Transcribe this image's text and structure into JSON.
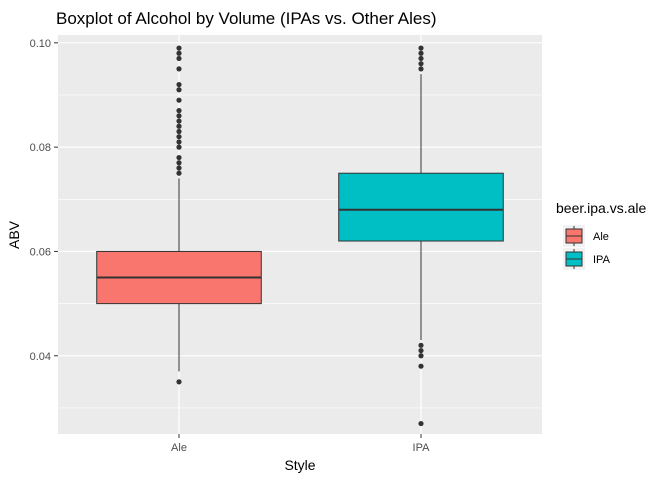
{
  "chart_data": {
    "type": "boxplot",
    "title": "Boxplot of Alcohol by Volume (IPAs vs. Other Ales)",
    "xlabel": "Style",
    "ylabel": "ABV",
    "categories": [
      "Ale",
      "IPA"
    ],
    "ylim": [
      0.025,
      0.1015
    ],
    "yticks": [
      0.04,
      0.06,
      0.08,
      0.1
    ],
    "ytick_labels": [
      "0.04",
      "0.06",
      "0.08",
      "0.10"
    ],
    "grid": true,
    "legend": {
      "title": "beer.ipa.vs.ale",
      "placement": "right",
      "entries": [
        {
          "label": "Ale",
          "color": "#F8766D"
        },
        {
          "label": "IPA",
          "color": "#00BFC4"
        }
      ]
    },
    "series": [
      {
        "category": "Ale",
        "color": "#F8766D",
        "q1": 0.05,
        "median": 0.055,
        "q3": 0.06,
        "whisker_low": 0.037,
        "whisker_high": 0.074,
        "outliers": [
          0.035,
          0.075,
          0.076,
          0.077,
          0.078,
          0.08,
          0.081,
          0.082,
          0.083,
          0.084,
          0.085,
          0.086,
          0.087,
          0.089,
          0.091,
          0.092,
          0.095,
          0.097,
          0.098,
          0.099
        ]
      },
      {
        "category": "IPA",
        "color": "#00BFC4",
        "q1": 0.062,
        "median": 0.068,
        "q3": 0.075,
        "whisker_low": 0.043,
        "whisker_high": 0.094,
        "outliers": [
          0.027,
          0.038,
          0.04,
          0.041,
          0.042,
          0.095,
          0.096,
          0.097,
          0.098,
          0.099
        ]
      }
    ]
  }
}
